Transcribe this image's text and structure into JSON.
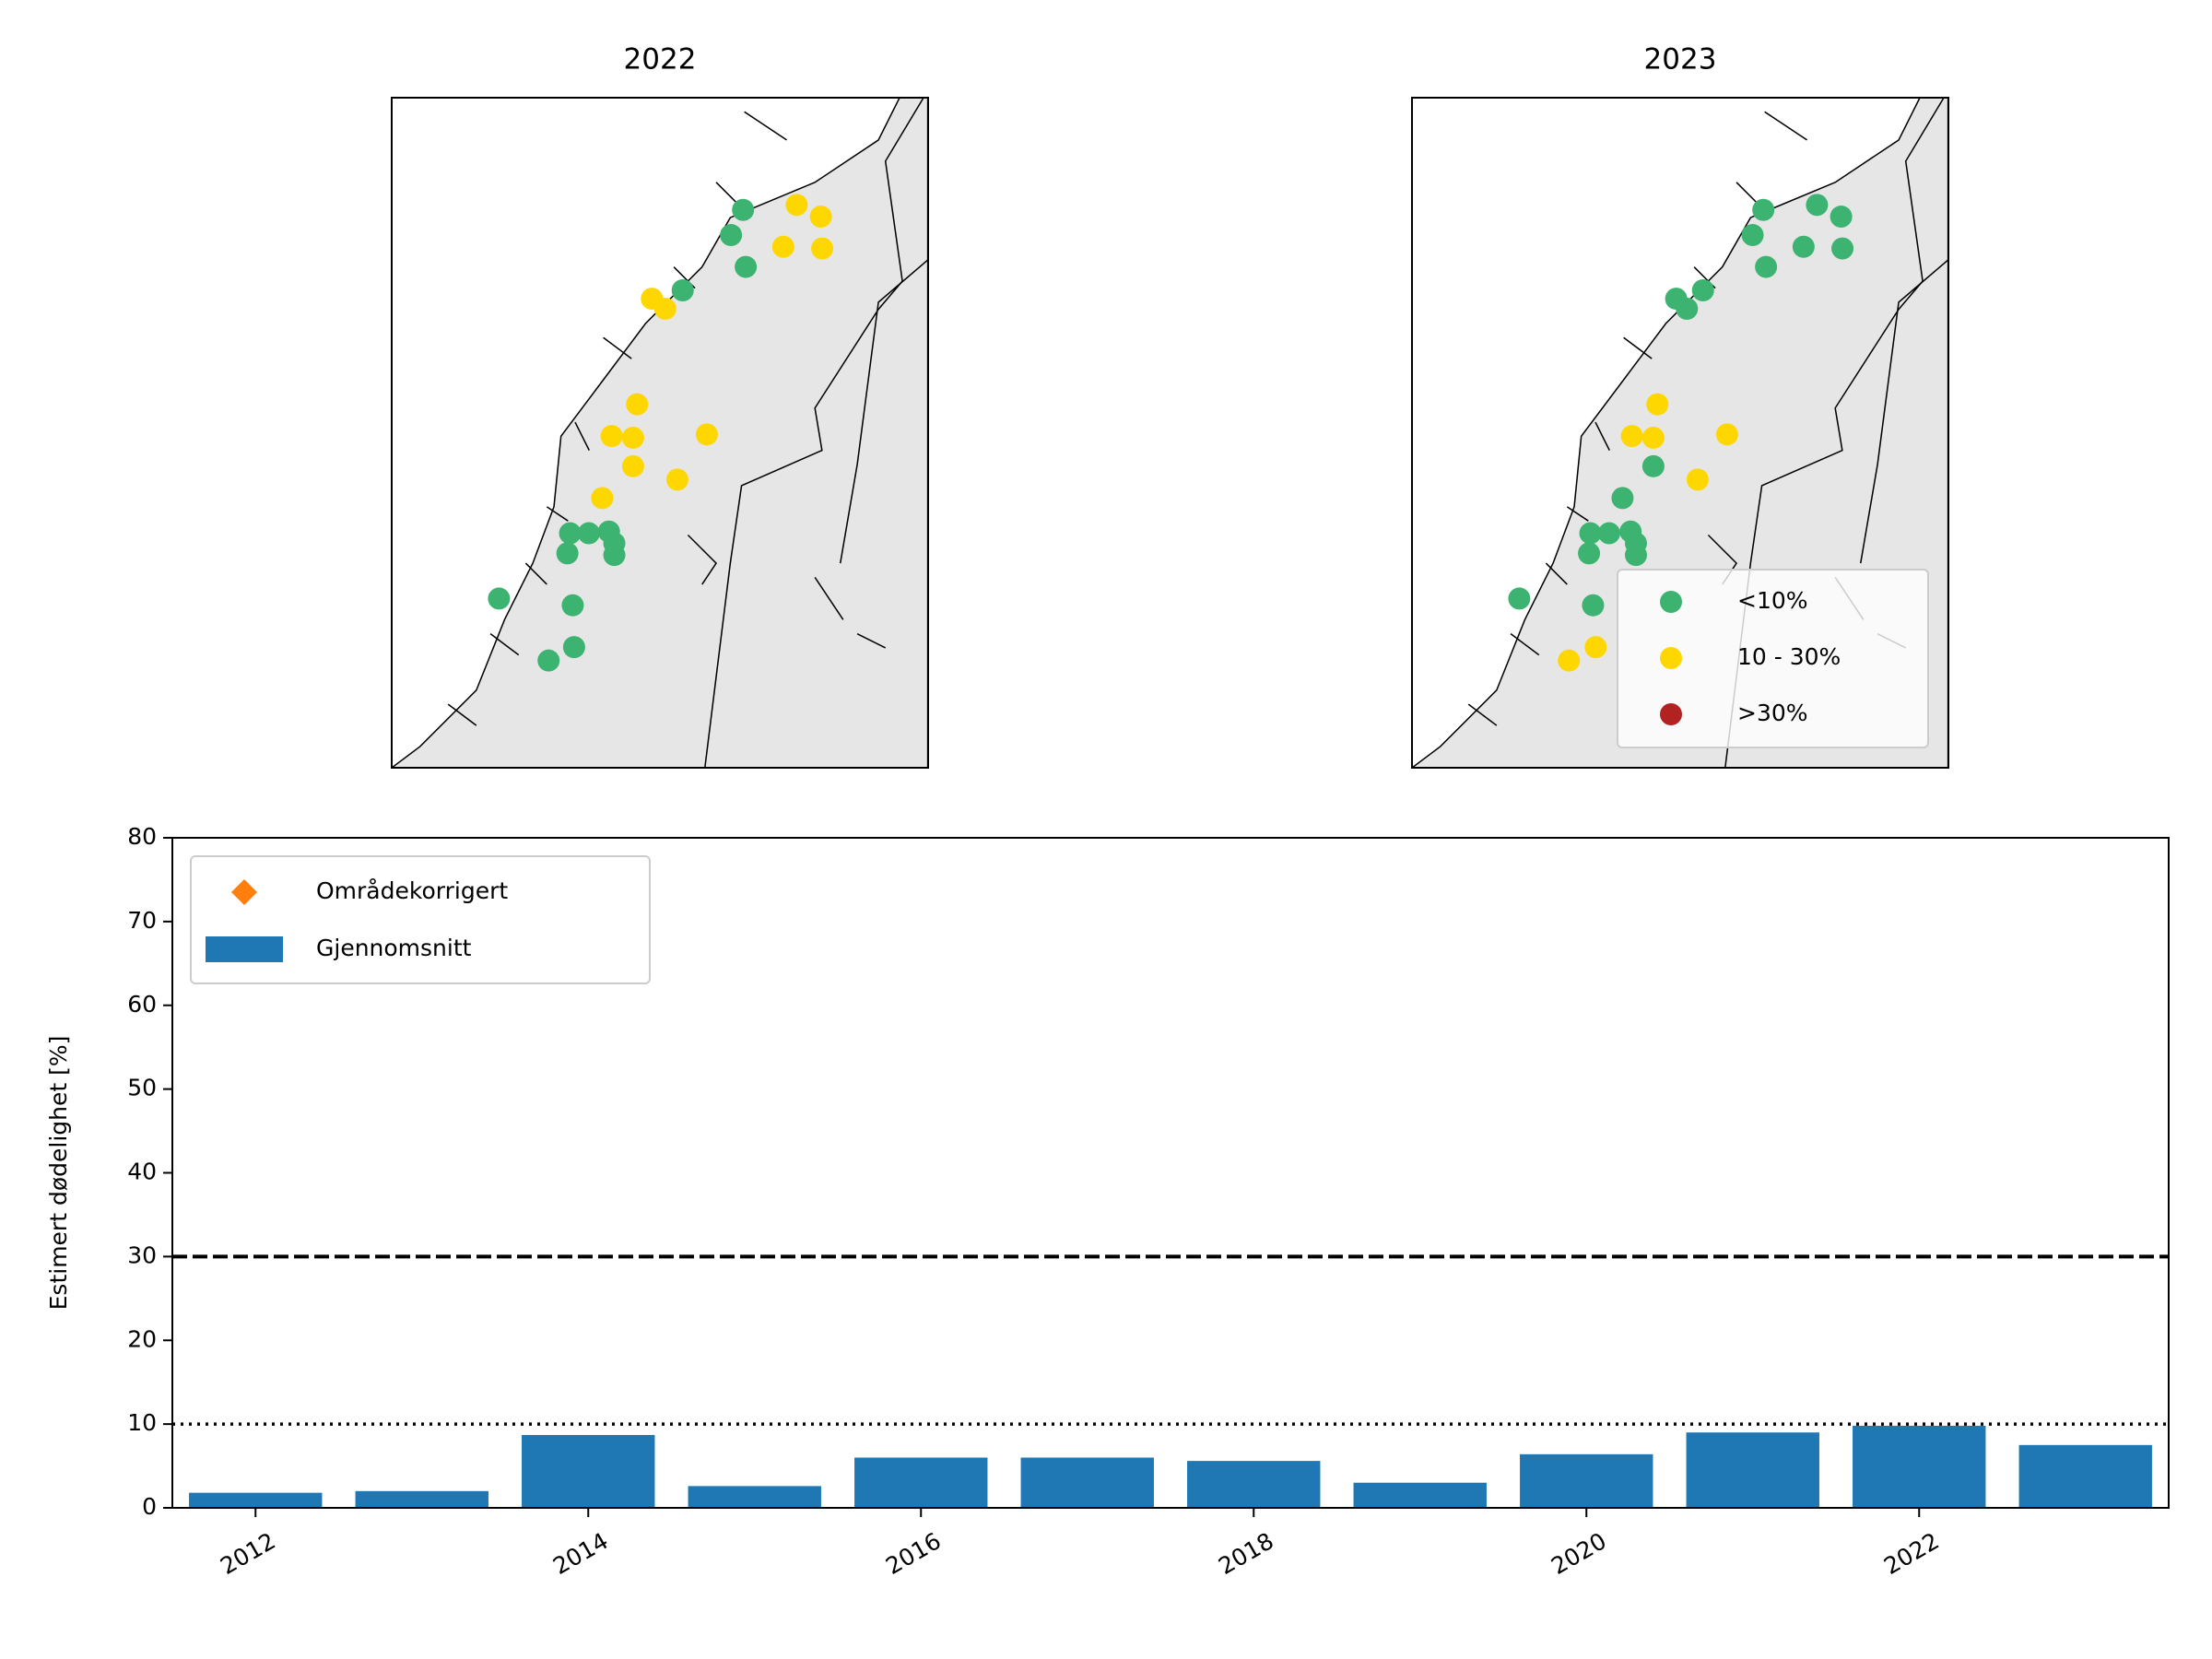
{
  "chart_data": [
    {
      "type": "map",
      "title": "2022",
      "xlim": [
        4.5,
        8.5
      ],
      "ylim": [
        58.5,
        62.5
      ],
      "series": [
        {
          "color": "#3cb371",
          "x": [
            7.12,
            7.03,
            7.14,
            6.67,
            5.83,
            5.97,
            6.12,
            6.16,
            5.81,
            6.16,
            5.3,
            5.85,
            5.86,
            5.67
          ],
          "y": [
            61.83,
            61.68,
            61.49,
            61.35,
            59.9,
            59.9,
            59.91,
            59.84,
            59.78,
            59.77,
            59.51,
            59.47,
            59.22,
            59.14
          ]
        },
        {
          "color": "#ffd700",
          "x": [
            7.52,
            7.7,
            7.42,
            7.71,
            6.44,
            6.54,
            6.33,
            6.14,
            6.3,
            6.85,
            6.3,
            6.63,
            6.07
          ],
          "y": [
            61.86,
            61.79,
            61.61,
            61.6,
            61.3,
            61.24,
            60.67,
            60.48,
            60.47,
            60.49,
            60.3,
            60.22,
            60.11
          ]
        }
      ]
    },
    {
      "type": "map",
      "title": "2023",
      "xlim": [
        4.5,
        8.5
      ],
      "ylim": [
        58.5,
        62.5
      ],
      "legend": "lower right",
      "series": [
        {
          "name": "<10%",
          "color": "#3cb371",
          "x": [
            7.12,
            7.52,
            7.7,
            7.04,
            7.42,
            7.71,
            7.14,
            6.67,
            6.47,
            6.55,
            6.3,
            6.07,
            5.83,
            5.97,
            6.13,
            6.17,
            5.82,
            6.17,
            5.3,
            5.85
          ],
          "y": [
            61.83,
            61.86,
            61.79,
            61.68,
            61.61,
            61.6,
            61.49,
            61.35,
            61.3,
            61.24,
            60.3,
            60.11,
            59.9,
            59.9,
            59.91,
            59.84,
            59.78,
            59.77,
            59.51,
            59.47
          ]
        },
        {
          "name": "10 - 30%",
          "color": "#ffd700",
          "x": [
            6.33,
            6.14,
            6.3,
            6.85,
            6.63,
            5.87,
            5.67
          ],
          "y": [
            60.67,
            60.48,
            60.47,
            60.49,
            60.22,
            59.22,
            59.14
          ]
        },
        {
          "name": ">30%",
          "color": "#b22222",
          "x": [],
          "y": []
        }
      ]
    },
    {
      "type": "bar",
      "y_label": "Estimert dødelighet [%]",
      "x": [
        2012,
        2013,
        2014,
        2015,
        2016,
        2017,
        2018,
        2019,
        2020,
        2021,
        2022,
        2023
      ],
      "xlim": [
        2011.5,
        2023.5
      ],
      "xticks": [
        2012,
        2014,
        2016,
        2018,
        2020,
        2022
      ],
      "ylim": [
        0,
        80
      ],
      "yticks": [
        0,
        10,
        20,
        30,
        40,
        50,
        60,
        70,
        80
      ],
      "legend": "upper left",
      "series": [
        {
          "name": "Områdekorrigert",
          "kind": "marker",
          "color": "#ff7f0e",
          "values": [
            null,
            null,
            null,
            null,
            null,
            null,
            null,
            null,
            null,
            null,
            null,
            null
          ]
        },
        {
          "name": "Gjennomsnitt",
          "kind": "bar",
          "color": "#1f77b4",
          "values": [
            1.8,
            2.0,
            8.7,
            2.6,
            6.0,
            6.0,
            5.6,
            3.0,
            6.4,
            9.0,
            9.8,
            7.5
          ]
        }
      ],
      "hlines": [
        {
          "value": 30,
          "style": "dashed"
        },
        {
          "value": 10,
          "style": "dotted"
        }
      ]
    }
  ]
}
